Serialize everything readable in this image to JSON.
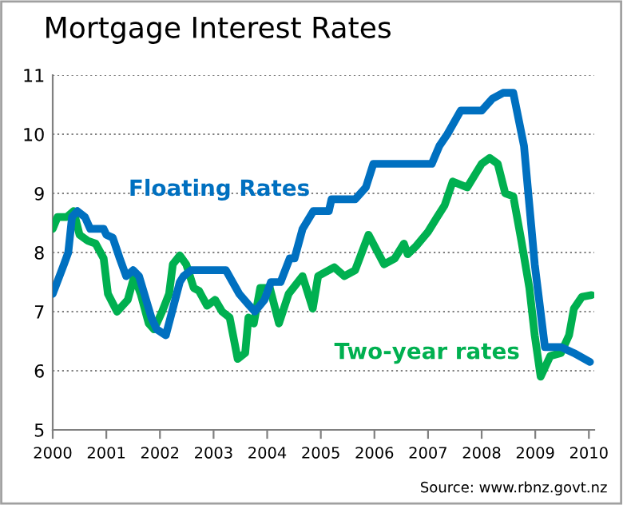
{
  "chart_data": {
    "type": "line",
    "title": "Mortgage Interest Rates",
    "annotations": [
      "Source: www.rbnz.govt.nz"
    ],
    "xlim": [
      2000,
      2010.1
    ],
    "xticks": [
      2000,
      2001,
      2002,
      2003,
      2004,
      2005,
      2006,
      2007,
      2008,
      2009,
      2010
    ],
    "ylim": [
      5,
      11
    ],
    "yticks": [
      5,
      6,
      7,
      8,
      9,
      10,
      11
    ],
    "grid": "y",
    "line_style": "solid",
    "marker": "none",
    "series": [
      {
        "name": "Floating Rates",
        "color": "#0070c0",
        "x": [
          2000.0,
          2000.21,
          2000.29,
          2000.36,
          2000.46,
          2000.6,
          2000.7,
          2000.95,
          2001.0,
          2001.12,
          2001.25,
          2001.37,
          2001.5,
          2001.61,
          2001.84,
          2001.94,
          2002.11,
          2002.37,
          2002.44,
          2002.58,
          2003.23,
          2003.48,
          2003.67,
          2003.77,
          2003.95,
          2004.07,
          2004.25,
          2004.42,
          2004.51,
          2004.66,
          2004.86,
          2005.15,
          2005.2,
          2005.64,
          2005.84,
          2005.98,
          2007.07,
          2007.21,
          2007.36,
          2007.61,
          2008.0,
          2008.2,
          2008.4,
          2008.59,
          2008.79,
          2008.99,
          2009.18,
          2009.48,
          2009.72,
          2010.02
        ],
        "values": [
          7.3,
          7.8,
          8.0,
          8.6,
          8.7,
          8.6,
          8.4,
          8.4,
          8.3,
          8.25,
          7.9,
          7.6,
          7.7,
          7.6,
          6.9,
          6.7,
          6.6,
          7.5,
          7.6,
          7.7,
          7.7,
          7.3,
          7.1,
          7.0,
          7.2,
          7.5,
          7.5,
          7.9,
          7.9,
          8.4,
          8.7,
          8.7,
          8.9,
          8.9,
          9.1,
          9.5,
          9.5,
          9.8,
          10.0,
          10.4,
          10.4,
          10.6,
          10.7,
          10.7,
          9.8,
          7.8,
          6.4,
          6.4,
          6.3,
          6.15
        ]
      },
      {
        "name": "Two-year rates",
        "color": "#00b050",
        "x": [
          2000.0,
          2000.09,
          2000.26,
          2000.39,
          2000.5,
          2000.65,
          2000.8,
          2000.95,
          2001.03,
          2001.2,
          2001.4,
          2001.52,
          2001.64,
          2001.79,
          2001.89,
          2002.04,
          2002.17,
          2002.24,
          2002.37,
          2002.49,
          2002.63,
          2002.73,
          2002.88,
          2003.03,
          2003.16,
          2003.3,
          2003.45,
          2003.59,
          2003.65,
          2003.75,
          2003.87,
          2004.05,
          2004.22,
          2004.4,
          2004.66,
          2004.85,
          2004.95,
          2005.25,
          2005.44,
          2005.64,
          2005.89,
          2006.18,
          2006.38,
          2006.55,
          2006.62,
          2006.77,
          2007.0,
          2007.17,
          2007.31,
          2007.46,
          2007.73,
          2008.0,
          2008.15,
          2008.3,
          2008.44,
          2008.59,
          2008.74,
          2008.89,
          2008.99,
          2009.1,
          2009.28,
          2009.48,
          2009.63,
          2009.72,
          2009.87,
          2010.05
        ],
        "values": [
          8.4,
          8.6,
          8.6,
          8.7,
          8.3,
          8.2,
          8.15,
          7.9,
          7.3,
          7.0,
          7.2,
          7.6,
          7.3,
          6.8,
          6.7,
          7.0,
          7.3,
          7.8,
          7.95,
          7.8,
          7.4,
          7.35,
          7.1,
          7.2,
          7.0,
          6.9,
          6.2,
          6.3,
          6.9,
          6.8,
          7.4,
          7.4,
          6.8,
          7.3,
          7.6,
          7.05,
          7.6,
          7.75,
          7.6,
          7.7,
          8.3,
          7.8,
          7.9,
          8.15,
          7.97,
          8.1,
          8.35,
          8.6,
          8.8,
          9.2,
          9.1,
          9.5,
          9.6,
          9.5,
          9.0,
          8.95,
          8.2,
          7.4,
          6.6,
          5.9,
          6.25,
          6.3,
          6.6,
          7.05,
          7.25,
          7.28
        ]
      }
    ]
  }
}
